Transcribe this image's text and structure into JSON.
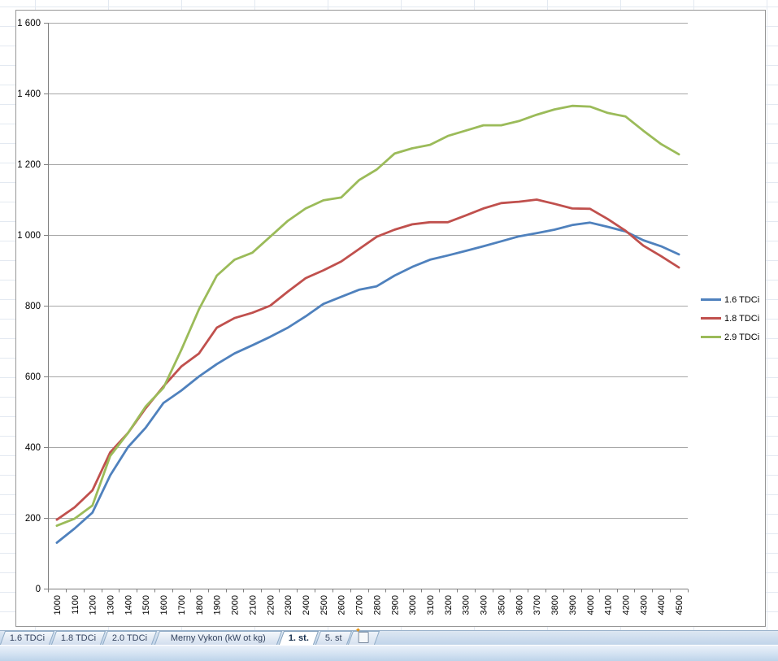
{
  "chart_data": {
    "type": "line",
    "title": "",
    "xlabel": "",
    "ylabel": "",
    "grid": true,
    "legend_position": "right",
    "ylim": [
      0,
      1600
    ],
    "ytick_step": 200,
    "ytick_labels": [
      "0",
      "200",
      "400",
      "600",
      "800",
      "1 000",
      "1 200",
      "1 400",
      "1 600"
    ],
    "x": [
      "1000",
      "1100",
      "1200",
      "1300",
      "1400",
      "1500",
      "1600",
      "1700",
      "1800",
      "1900",
      "2000",
      "2100",
      "2200",
      "2300",
      "2400",
      "2500",
      "2600",
      "2700",
      "2800",
      "2900",
      "3000",
      "3100",
      "3200",
      "3300",
      "3400",
      "3500",
      "3600",
      "3700",
      "3800",
      "3900",
      "4000",
      "4100",
      "4200",
      "4300",
      "4400",
      "4500"
    ],
    "series": [
      {
        "name": "1.6 TDCi",
        "color": "#4F81BD",
        "values": [
          130,
          170,
          215,
          320,
          400,
          455,
          525,
          560,
          600,
          635,
          665,
          688,
          712,
          738,
          770,
          805,
          825,
          845,
          855,
          885,
          910,
          930,
          942,
          955,
          968,
          982,
          996,
          1005,
          1015,
          1028,
          1035,
          1023,
          1010,
          985,
          968,
          945
        ]
      },
      {
        "name": "1.8 TDCi",
        "color": "#C0504D",
        "values": [
          195,
          230,
          278,
          385,
          440,
          510,
          572,
          628,
          665,
          738,
          765,
          780,
          800,
          840,
          878,
          900,
          925,
          960,
          995,
          1015,
          1030,
          1036,
          1036,
          1055,
          1075,
          1090,
          1094,
          1100,
          1088,
          1075,
          1074,
          1045,
          1012,
          970,
          940,
          908
        ]
      },
      {
        "name": "2.9 TDCi",
        "color": "#9BBB59",
        "values": [
          178,
          198,
          235,
          375,
          440,
          515,
          568,
          675,
          790,
          885,
          930,
          950,
          995,
          1040,
          1075,
          1098,
          1106,
          1155,
          1185,
          1230,
          1245,
          1255,
          1280,
          1295,
          1310,
          1310,
          1322,
          1340,
          1355,
          1365,
          1363,
          1345,
          1335,
          1295,
          1257,
          1228
        ]
      }
    ]
  },
  "sheet_tabs": [
    {
      "label": "1.6 TDCi",
      "active": false,
      "wide": false
    },
    {
      "label": "1.8 TDCi",
      "active": false,
      "wide": false
    },
    {
      "label": "2.0 TDCi",
      "active": false,
      "wide": false
    },
    {
      "label": "Merny Vykon (kW ot kg)",
      "active": false,
      "wide": true
    },
    {
      "label": "1. st.",
      "active": true,
      "wide": false
    },
    {
      "label": "5. st",
      "active": false,
      "wide": false
    }
  ],
  "icons": {
    "insert_worksheet_star": "✦"
  }
}
